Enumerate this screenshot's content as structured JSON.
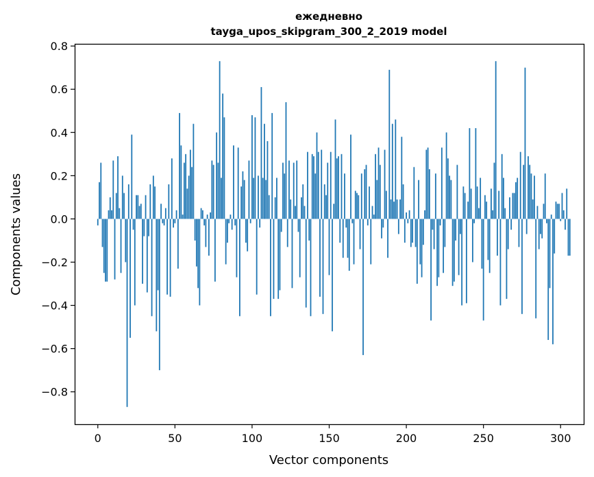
{
  "chart_data": {
    "type": "bar",
    "title_line1": "ежедневно",
    "title_line2": "tayga_upos_skipgram_300_2_2019 model",
    "xlabel": "Vector components",
    "ylabel": "Components values",
    "xlim": [
      -15,
      315
    ],
    "ylim": [
      -0.95,
      0.81
    ],
    "x_ticks": [
      0,
      50,
      100,
      150,
      200,
      250,
      300
    ],
    "y_ticks": [
      -0.8,
      -0.6,
      -0.4,
      -0.2,
      0.0,
      0.2,
      0.4,
      0.6,
      0.8
    ],
    "x_tick_labels": [
      "0",
      "50",
      "100",
      "150",
      "200",
      "250",
      "300"
    ],
    "y_tick_labels": [
      "−0.8",
      "−0.6",
      "−0.4",
      "−0.2",
      "0.0",
      "0.2",
      "0.4",
      "0.6",
      "0.8"
    ],
    "bar_color": "#1f77b4",
    "grid": false,
    "legend": "none",
    "values": [
      -0.03,
      0.17,
      0.26,
      -0.13,
      -0.25,
      -0.29,
      -0.29,
      0.04,
      0.1,
      0.04,
      0.27,
      -0.28,
      0.12,
      0.29,
      0.05,
      -0.25,
      0.2,
      0.12,
      -0.2,
      -0.87,
      0.16,
      -0.55,
      0.39,
      -0.05,
      -0.4,
      0.11,
      0.11,
      0.06,
      0.07,
      -0.3,
      -0.08,
      0.11,
      -0.34,
      -0.08,
      0.16,
      -0.45,
      0.2,
      0.15,
      -0.52,
      -0.33,
      -0.7,
      0.07,
      -0.02,
      -0.03,
      0.05,
      -0.35,
      0.16,
      -0.36,
      0.28,
      -0.04,
      -0.02,
      0.04,
      -0.23,
      0.49,
      0.34,
      0.02,
      0.26,
      0.3,
      0.14,
      0.2,
      0.32,
      0.24,
      0.44,
      -0.1,
      -0.22,
      -0.32,
      -0.4,
      0.05,
      0.04,
      -0.03,
      -0.13,
      0.02,
      -0.17,
      0.03,
      0.27,
      0.25,
      -0.29,
      0.4,
      0.26,
      0.73,
      0.19,
      0.58,
      0.47,
      -0.21,
      -0.11,
      -0.02,
      0.02,
      -0.05,
      0.34,
      -0.03,
      -0.27,
      0.33,
      -0.45,
      0.15,
      0.22,
      0.18,
      -0.11,
      -0.15,
      0.27,
      -0.02,
      0.48,
      0.19,
      0.47,
      -0.35,
      0.2,
      -0.04,
      0.61,
      0.19,
      0.44,
      0.18,
      0.36,
      0.11,
      -0.45,
      0.49,
      -0.37,
      0.1,
      0.19,
      -0.37,
      -0.33,
      -0.06,
      0.26,
      0.21,
      0.54,
      -0.13,
      0.27,
      0.09,
      -0.32,
      0.26,
      0.06,
      0.27,
      -0.06,
      -0.27,
      0.1,
      0.16,
      0.06,
      -0.41,
      0.31,
      -0.1,
      -0.45,
      0.3,
      0.29,
      0.21,
      0.4,
      0.31,
      -0.36,
      0.32,
      -0.44,
      0.16,
      0.11,
      0.26,
      -0.26,
      0.31,
      -0.52,
      0.07,
      0.46,
      0.28,
      0.29,
      -0.11,
      0.3,
      -0.18,
      0.21,
      -0.04,
      -0.18,
      -0.24,
      0.39,
      -0.02,
      -0.21,
      0.13,
      0.12,
      0.11,
      -0.14,
      0.21,
      -0.63,
      0.23,
      0.25,
      -0.03,
      0.15,
      -0.21,
      0.06,
      0.02,
      0.3,
      0.18,
      0.33,
      0.25,
      -0.09,
      -0.04,
      0.32,
      0.13,
      -0.18,
      0.69,
      0.09,
      0.44,
      0.08,
      0.46,
      0.09,
      -0.07,
      0.09,
      0.38,
      0.16,
      -0.11,
      0.03,
      -0.02,
      0.04,
      -0.13,
      -0.11,
      0.24,
      -0.13,
      -0.3,
      0.18,
      -0.21,
      -0.27,
      -0.12,
      0.04,
      0.32,
      0.33,
      0.23,
      -0.47,
      -0.05,
      -0.14,
      0.21,
      -0.31,
      -0.27,
      -0.03,
      0.33,
      -0.25,
      -0.13,
      0.4,
      0.28,
      0.2,
      0.18,
      -0.31,
      -0.29,
      -0.1,
      0.25,
      -0.26,
      -0.07,
      -0.4,
      0.15,
      0.12,
      -0.39,
      0.08,
      0.42,
      0.14,
      -0.2,
      -0.02,
      0.42,
      0.15,
      0.05,
      0.19,
      -0.23,
      -0.47,
      0.11,
      0.08,
      -0.19,
      -0.25,
      0.14,
      0.04,
      0.26,
      0.73,
      -0.17,
      0.13,
      -0.4,
      0.3,
      0.19,
      0.05,
      -0.37,
      -0.14,
      0.1,
      -0.05,
      0.12,
      0.12,
      0.17,
      0.19,
      -0.13,
      0.31,
      -0.44,
      0.25,
      0.7,
      -0.07,
      0.29,
      0.25,
      0.21,
      0.09,
      0.2,
      -0.46,
      0.06,
      -0.14,
      -0.07,
      -0.09,
      0.07,
      0.21,
      -0.02,
      -0.56,
      -0.32,
      0.02,
      -0.58,
      -0.16,
      0.08,
      0.07,
      0.07,
      -0.01,
      0.12,
      0.04,
      -0.05,
      0.14,
      -0.17,
      -0.17
    ]
  }
}
